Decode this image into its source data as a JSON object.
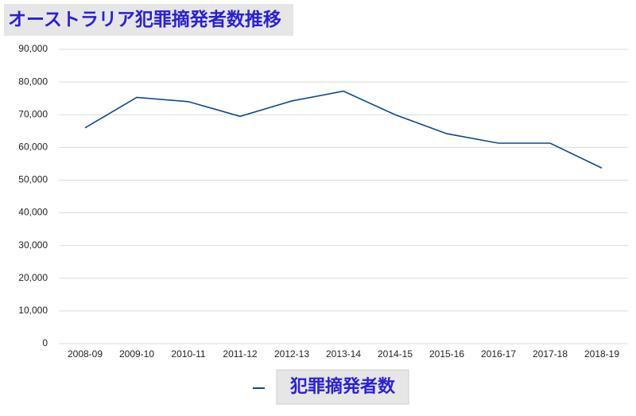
{
  "chart_data": {
    "type": "line",
    "title": "オーストラリア犯罪摘発者数推移",
    "categories": [
      "2008-09",
      "2009-10",
      "2010-11",
      "2011-12",
      "2012-13",
      "2013-14",
      "2014-15",
      "2015-16",
      "2016-17",
      "2017-18",
      "2018-19"
    ],
    "series": [
      {
        "name": "犯罪摘発者数",
        "color": "#0b4a8f",
        "values": [
          66000,
          75300,
          74000,
          69500,
          74200,
          77200,
          70000,
          64200,
          61300,
          61300,
          53700
        ]
      }
    ],
    "ylim": [
      0,
      90000
    ],
    "yticks": [
      0,
      {
        "value": 10000,
        "label": "10,000"
      },
      {
        "value": 20000,
        "label": "20,000"
      },
      {
        "value": 30000,
        "label": "30,000"
      },
      {
        "value": 40000,
        "label": "40,000"
      },
      {
        "value": 50000,
        "label": "50,000"
      },
      {
        "value": 60000,
        "label": "60,000"
      },
      {
        "value": 70000,
        "label": "70,000"
      },
      {
        "value": 80000,
        "label": "80,000"
      },
      {
        "value": 90000,
        "label": "90,000"
      }
    ],
    "grid": true,
    "legend": "bottom"
  }
}
